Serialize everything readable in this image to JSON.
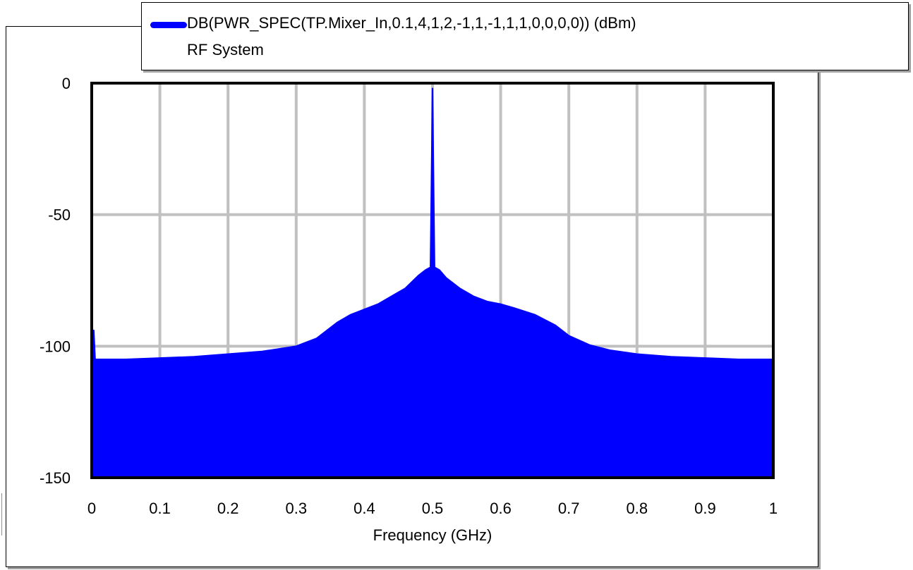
{
  "legend": {
    "series_label": "DB(PWR_SPEC(TP.Mixer_In,0.1,4,1,2,-1,1,-1,1,1,0,0,0,0)) (dBm)",
    "subtitle": "RF System"
  },
  "colors": {
    "series": "#0000ff",
    "grid": "#c0c0c0",
    "frame": "#000000"
  },
  "chart_data": {
    "type": "area",
    "xlabel": "Frequency (GHz)",
    "ylabel": "",
    "xlim": [
      0,
      1
    ],
    "ylim": [
      -150,
      0
    ],
    "grid": true,
    "legend_position": "top",
    "x_ticks": [
      "0",
      "0.1",
      "0.2",
      "0.3",
      "0.4",
      "0.5",
      "0.6",
      "0.7",
      "0.8",
      "0.9",
      "1"
    ],
    "y_ticks": [
      "0",
      "-50",
      "-100",
      "-150"
    ],
    "series": [
      {
        "name": "DB(PWR_SPEC(TP.Mixer_In,0.1,4,1,2,-1,1,-1,1,1,0,0,0,0)) (dBm)",
        "x": [
          0,
          0.003,
          0.005,
          0.05,
          0.1,
          0.15,
          0.2,
          0.25,
          0.3,
          0.33,
          0.36,
          0.38,
          0.4,
          0.42,
          0.44,
          0.46,
          0.48,
          0.49,
          0.497,
          0.5,
          0.503,
          0.51,
          0.52,
          0.54,
          0.56,
          0.58,
          0.6,
          0.62,
          0.65,
          0.68,
          0.7,
          0.73,
          0.76,
          0.8,
          0.85,
          0.9,
          0.95,
          1.0
        ],
        "y": [
          -94,
          -94,
          -105,
          -105,
          -104.5,
          -104,
          -103,
          -102,
          -100,
          -97,
          -91,
          -88,
          -86,
          -84,
          -81,
          -78,
          -73,
          -71,
          -70,
          -2,
          -70,
          -71,
          -74,
          -78,
          -81,
          -83,
          -84,
          -85.5,
          -88,
          -92,
          -96,
          -99.5,
          -101.5,
          -103,
          -104,
          -104.5,
          -105,
          -105
        ]
      }
    ]
  }
}
